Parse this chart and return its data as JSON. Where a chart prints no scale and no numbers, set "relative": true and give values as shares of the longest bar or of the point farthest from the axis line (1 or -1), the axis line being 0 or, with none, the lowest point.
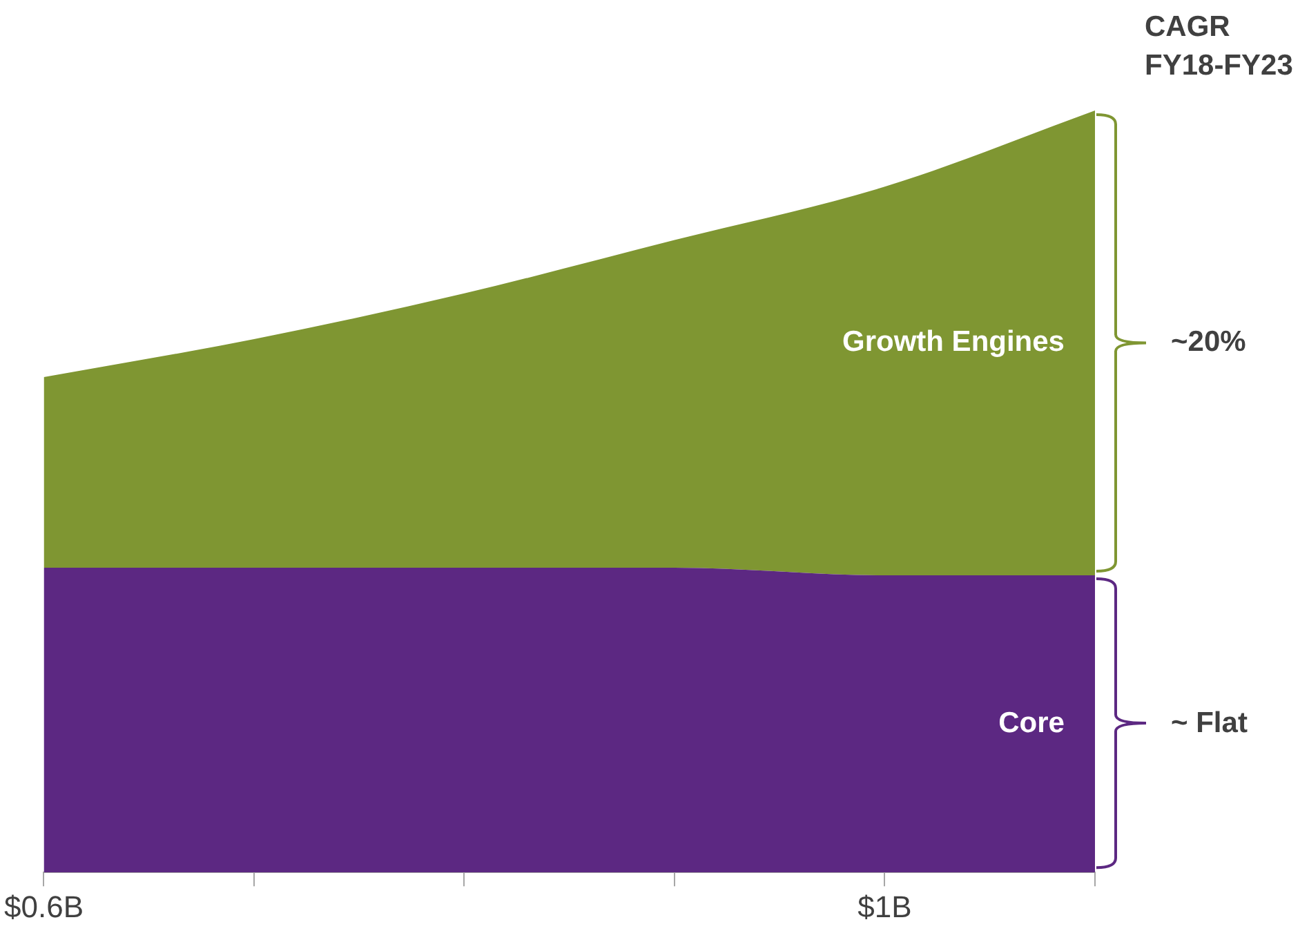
{
  "chart_data": {
    "type": "area",
    "stacked": true,
    "relative": true,
    "categories": [
      "$0.6B",
      null,
      null,
      null,
      "$1B",
      null
    ],
    "series": [
      {
        "name": "Core",
        "color": "#5c2882",
        "values": [
          0.4,
          0.4,
          0.4,
          0.4,
          0.39,
          0.39
        ]
      },
      {
        "name": "Growth Engines",
        "color": "#7f9632",
        "values": [
          0.25,
          0.3,
          0.36,
          0.43,
          0.51,
          0.61
        ]
      }
    ],
    "annotations": [
      "CAGR FY18-FY23",
      "~ Flat",
      "~20%"
    ]
  }
}
